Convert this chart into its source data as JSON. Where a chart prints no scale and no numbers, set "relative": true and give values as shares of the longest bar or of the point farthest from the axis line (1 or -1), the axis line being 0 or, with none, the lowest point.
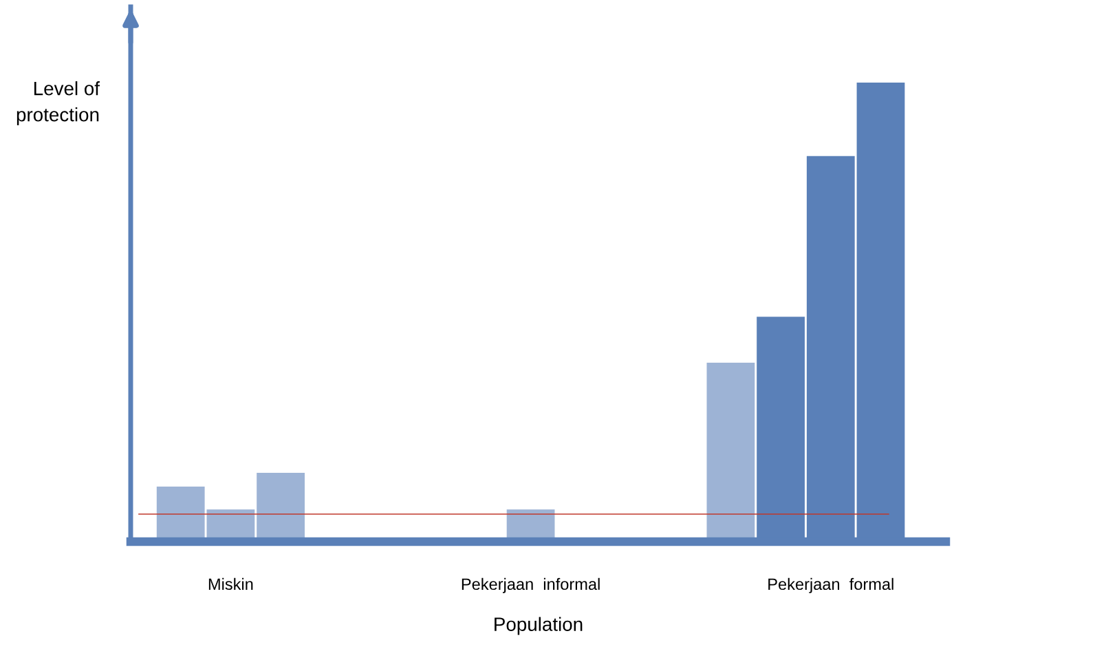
{
  "chart_data": {
    "type": "bar",
    "relative": true,
    "xlabel": "Population",
    "ylabel": "Level of\nprotection",
    "categories": [
      null,
      "Miskin",
      null,
      null,
      null,
      null,
      null,
      "Pekerjaan  informal",
      null,
      null,
      null,
      null,
      null,
      "Pekerjaan  formal",
      null
    ],
    "values": [
      0.12,
      0.07,
      0.15,
      null,
      null,
      null,
      null,
      0.07,
      null,
      null,
      null,
      0.39,
      0.49,
      0.84,
      1.0
    ],
    "colors": [
      "#9db3d5",
      "#9db3d5",
      "#9db3d5",
      "#9db3d5",
      "#9db3d5",
      "#9db3d5",
      "#9db3d5",
      "#9db3d5",
      "#9db3d5",
      "#9db3d5",
      "#9db3d5",
      "#9db3d5",
      "#5a80b8",
      "#5a80b8",
      "#5a80b8"
    ],
    "ref_lines": [
      {
        "axis": "y",
        "value": 0.06,
        "color": "#c0392b"
      }
    ]
  }
}
